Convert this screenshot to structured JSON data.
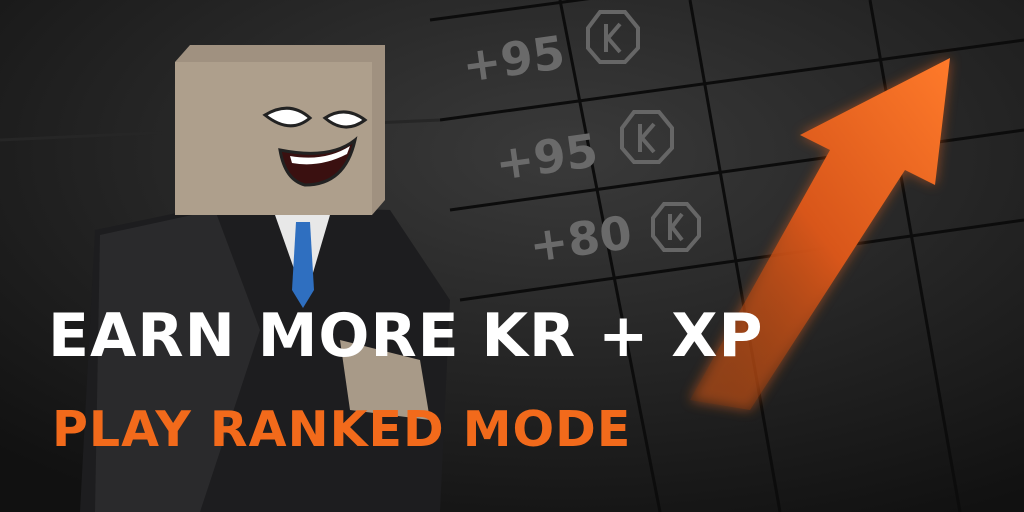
{
  "rewards": [
    "+95",
    "+95",
    "+80"
  ],
  "headline": "EARN MORE KR + XP",
  "subheadline": "PLAY RANKED MODE"
}
